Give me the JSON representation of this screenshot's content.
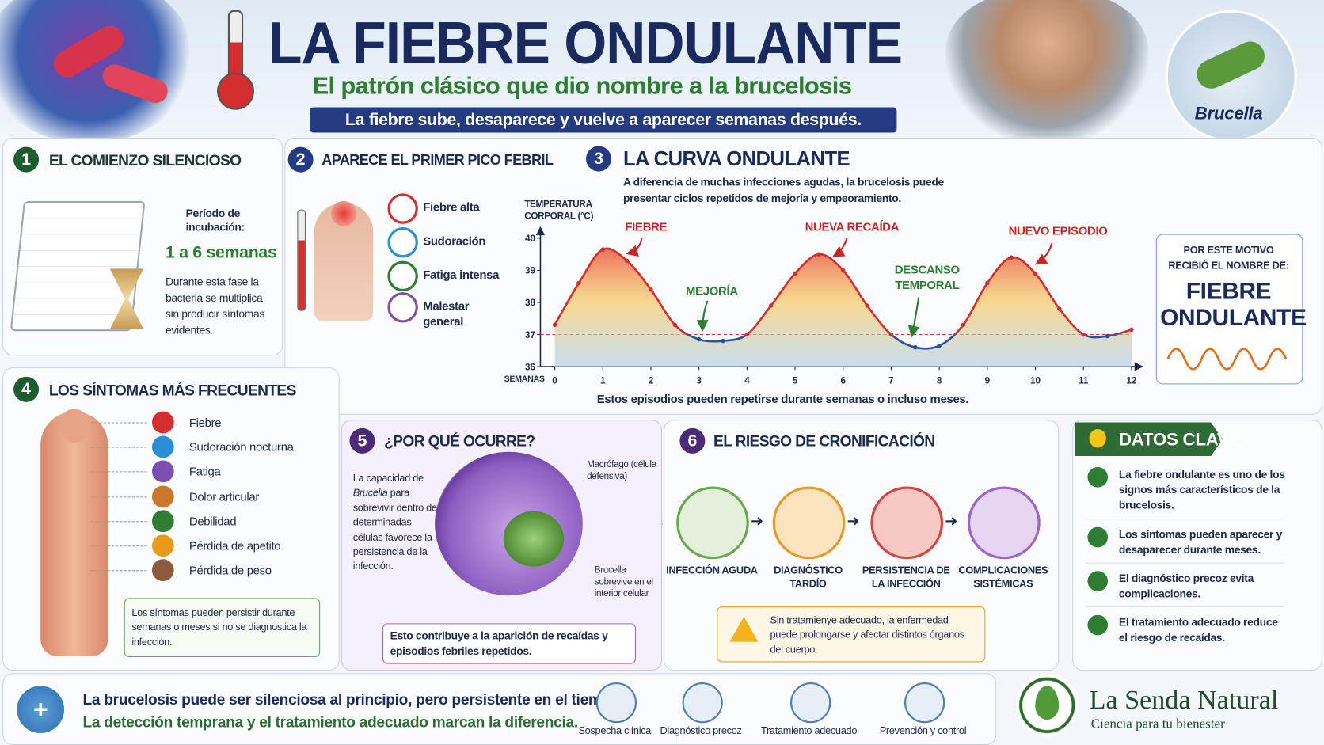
{
  "header": {
    "title": "LA FIEBRE ONDULANTE",
    "subtitle": "El patrón clásico que dio nombre a la brucelosis",
    "banner": "La fiebre sube, desaparece y vuelve a aparecer semanas después.",
    "badge": "Brucella"
  },
  "section1": {
    "number": "1",
    "title": "EL COMIENZO SILENCIOSO",
    "label": "Período de incubación:",
    "value": "1 a 6 semanas",
    "text": "Durante esta fase la bacteria se multiplica sin producir síntomas evidentes."
  },
  "section2": {
    "number": "2",
    "title": "APARECE EL PRIMER PICO FEBRIL",
    "items": [
      "Fiebre alta",
      "Sudoración",
      "Fatiga intensa",
      "Malestar general"
    ]
  },
  "section3": {
    "number": "3",
    "description": "A diferencia de muchas infecciones agudas, la brucelosis puede presentar ciclos repetidos de mejoría y empeoramiento.",
    "side_title": "POR ESTE MOTIVO RECIBIÓ EL NOMBRE DE:",
    "side_name": "FIEBRE ONDULANTE"
  },
  "chart_data": {
    "type": "line",
    "title": "LA CURVA ONDULANTE",
    "y_label": "TEMPERATURA CORPORAL (°C)",
    "x_label": "SEMANAS",
    "caption": "Estos episodios pueden repetirse durante semanas o incluso meses.",
    "annotations": [
      "FIEBRE",
      "MEJORÍA",
      "NUEVA RECAÍDA",
      "DESCANSO TEMPORAL",
      "NUEVO EPISODIO"
    ],
    "x": [
      0,
      0.5,
      1,
      1.5,
      2,
      2.5,
      3,
      3.5,
      4,
      4.5,
      5,
      5.5,
      6,
      6.5,
      7,
      7.5,
      8,
      8.5,
      9,
      9.5,
      10,
      10.5,
      11,
      11.5,
      12
    ],
    "values": [
      37.3,
      38.6,
      39.65,
      39.3,
      38.4,
      37.3,
      36.85,
      36.8,
      37.0,
      37.9,
      38.9,
      39.5,
      39.0,
      37.9,
      37.0,
      36.6,
      36.65,
      37.3,
      38.6,
      39.4,
      38.9,
      37.8,
      37.0,
      36.95,
      37.15
    ],
    "xlim": [
      0,
      12
    ],
    "ylim": [
      36,
      40
    ],
    "xticks": [
      0,
      1,
      2,
      3,
      4,
      5,
      6,
      7,
      8,
      9,
      10,
      11,
      12
    ],
    "yticks": [
      36,
      37,
      38,
      39,
      40
    ],
    "reference_line": 37,
    "color": "#d32f2f",
    "color_below": "#2c4f9e"
  },
  "section4": {
    "number": "4",
    "title": "LOS SÍNTOMAS MÁS FRECUENTES",
    "items": [
      "Fiebre",
      "Sudoración nocturna",
      "Fatiga",
      "Dolor articular",
      "Debilidad",
      "Pérdida de apetito",
      "Pérdida de peso"
    ],
    "note": "Los síntomas pueden persistir durante semanas o meses si no se diagnostica la infección."
  },
  "section5": {
    "number": "5",
    "title": "¿POR QUÉ OCURRE?",
    "text_parts": [
      "La capacidad de",
      "Brucella",
      "para sobrevivir dentro de determinadas células favorece la persistencia de la infección."
    ],
    "label_cell": "Macrófago (célula defensiva)",
    "label_bacteria": "Brucella sobrevive en el interior celular",
    "note": "Esto contribuye a la aparición de recaídas y episodios febriles repetidos."
  },
  "section6": {
    "number": "6",
    "title": "EL RIESGO DE CRONIFICACIÓN",
    "steps": [
      "INFECCIÓN AGUDA",
      "DIAGNÓSTICO TARDÍO",
      "PERSISTENCIA DE LA INFECCIÓN",
      "COMPLICACIONES SISTÉMICAS"
    ],
    "warning": "Sin tratamienye adecuado, la enfermedad puede prolongarse y afectar distintos órganos del cuerpo."
  },
  "key_facts": {
    "title": "DATOS CLAVE",
    "items": [
      "La fiebre ondulante es uno de los signos más característicos de la brucelosis.",
      "Los síntomas pueden aparecer y desaparecer durante meses.",
      "El diagnóstico precoz evita complicaciones.",
      "El tratamiento adecuado reduce el riesgo de recaídas."
    ]
  },
  "footer": {
    "lines": [
      "La brucelosis puede ser silenciosa al principio, pero persistente en el tiempo.",
      "La detección temprana y el tratamiento adecuado marcan la diferencia."
    ],
    "icons": [
      "Sospecha clínica",
      "Diagnóstico precoz",
      "Tratamiento adecuado",
      "Prevención y control"
    ],
    "brand": "La Senda Natural",
    "tagline": "Ciencia para tu bienester"
  }
}
